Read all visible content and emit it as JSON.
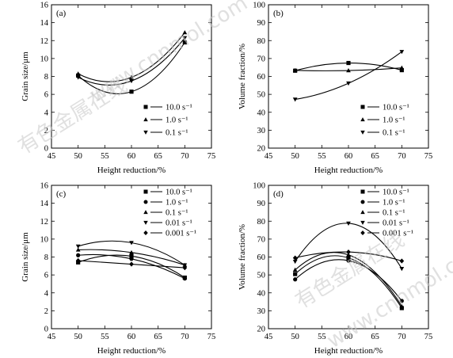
{
  "watermark": {
    "primary": "有色金属在线",
    "secondary": "www.cnnmol.com"
  },
  "chart_data": [
    {
      "panel": "(a)",
      "type": "line",
      "xlabel": "Height reduction/%",
      "ylabel": "Grain size/μm",
      "xlim": [
        45,
        75
      ],
      "ylim": [
        0,
        16
      ],
      "xticks": [
        45,
        50,
        55,
        60,
        65,
        70,
        75
      ],
      "yticks": [
        0,
        2,
        4,
        6,
        8,
        10,
        12,
        14,
        16
      ],
      "legend_position": "lower-right",
      "x": [
        50,
        60,
        70
      ],
      "series": [
        {
          "name": "10.0 s⁻¹",
          "marker": "square",
          "values": [
            8.1,
            6.3,
            11.8
          ]
        },
        {
          "name": "1.0 s⁻¹",
          "marker": "triangle-up",
          "values": [
            8.3,
            7.9,
            12.9
          ]
        },
        {
          "name": "0.1 s⁻¹",
          "marker": "triangle-down",
          "values": [
            7.9,
            7.5,
            12.3
          ]
        }
      ]
    },
    {
      "panel": "(b)",
      "type": "line",
      "xlabel": "Height reduction/%",
      "ylabel": "Volume fraction/%",
      "xlim": [
        45,
        75
      ],
      "ylim": [
        20,
        100
      ],
      "xticks": [
        45,
        50,
        55,
        60,
        65,
        70,
        75
      ],
      "yticks": [
        20,
        30,
        40,
        50,
        60,
        70,
        80,
        90,
        100
      ],
      "legend_position": "lower-right",
      "x": [
        50,
        60,
        70
      ],
      "series": [
        {
          "name": "10.0 s⁻¹",
          "marker": "square",
          "values": [
            63.2,
            67.5,
            63.5
          ]
        },
        {
          "name": "1.0 s⁻¹",
          "marker": "triangle-up",
          "values": [
            63.4,
            63.3,
            64.8
          ]
        },
        {
          "name": "0.1 s⁻¹",
          "marker": "triangle-down",
          "values": [
            47.2,
            56.2,
            73.8
          ]
        }
      ]
    },
    {
      "panel": "(c)",
      "type": "line",
      "xlabel": "Height reduction/%",
      "ylabel": "Grain size/μm",
      "xlim": [
        45,
        75
      ],
      "ylim": [
        0,
        16
      ],
      "xticks": [
        45,
        50,
        55,
        60,
        65,
        70,
        75
      ],
      "yticks": [
        0,
        2,
        4,
        6,
        8,
        10,
        12,
        14,
        16
      ],
      "legend_position": "top-right",
      "x": [
        50,
        60,
        70
      ],
      "series": [
        {
          "name": "10.0 s⁻¹",
          "marker": "square",
          "values": [
            7.4,
            8.1,
            5.7
          ]
        },
        {
          "name": "1.0 s⁻¹",
          "marker": "circle",
          "values": [
            8.2,
            7.8,
            5.6
          ]
        },
        {
          "name": "0.1 s⁻¹",
          "marker": "triangle-up",
          "values": [
            8.8,
            8.5,
            7.1
          ]
        },
        {
          "name": "0.01 s⁻¹",
          "marker": "triangle-down",
          "values": [
            9.2,
            9.6,
            7.1
          ]
        },
        {
          "name": "0.001 s⁻¹",
          "marker": "diamond",
          "values": [
            7.6,
            7.2,
            6.8
          ]
        }
      ]
    },
    {
      "panel": "(d)",
      "type": "line",
      "xlabel": "Height reduction/%",
      "ylabel": "Volume fraction/%",
      "xlim": [
        45,
        75
      ],
      "ylim": [
        20,
        100
      ],
      "xticks": [
        45,
        50,
        55,
        60,
        65,
        70,
        75
      ],
      "yticks": [
        20,
        30,
        40,
        50,
        60,
        70,
        80,
        90,
        100
      ],
      "legend_position": "top-right",
      "x": [
        50,
        60,
        70
      ],
      "series": [
        {
          "name": "10.0 s⁻¹",
          "marker": "square",
          "values": [
            50.5,
            59.5,
            31.5
          ]
        },
        {
          "name": "1.0 s⁻¹",
          "marker": "circle",
          "values": [
            47.5,
            58.0,
            35.5
          ]
        },
        {
          "name": "0.1 s⁻¹",
          "marker": "triangle-up",
          "values": [
            52.8,
            61.2,
            32.5
          ]
        },
        {
          "name": "0.01 s⁻¹",
          "marker": "triangle-down",
          "values": [
            57.5,
            78.8,
            53.5
          ]
        },
        {
          "name": "0.001 s⁻¹",
          "marker": "diamond",
          "values": [
            59.5,
            62.8,
            57.8
          ]
        }
      ]
    }
  ]
}
